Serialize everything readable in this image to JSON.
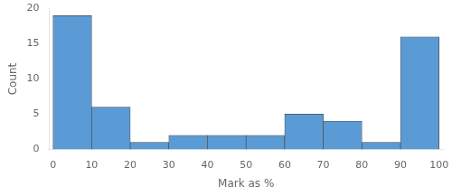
{
  "chart_data": {
    "type": "histogram",
    "bins": [
      0,
      10,
      20,
      30,
      40,
      50,
      60,
      70,
      80,
      90,
      100
    ],
    "values": [
      19,
      6,
      1,
      2,
      2,
      2,
      5,
      4,
      1,
      16
    ],
    "color": "#5b9bd5",
    "xlabel": "Mark as %",
    "ylabel": "Count",
    "xlim": [
      -1,
      101
    ],
    "ylim": [
      0,
      20
    ],
    "xticks": [
      0,
      10,
      20,
      30,
      40,
      50,
      60,
      70,
      80,
      90,
      100
    ],
    "yticks": [
      0,
      5,
      10,
      15,
      20
    ],
    "grid": false
  }
}
